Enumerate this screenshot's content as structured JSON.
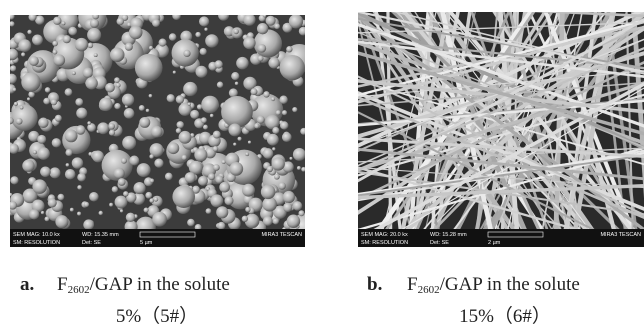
{
  "panels": [
    {
      "label": "a.",
      "caption_main": "F",
      "caption_sub": "2602",
      "caption_rest": "/GAP in the solute",
      "caption_line2": "5%（5#）",
      "info": {
        "mag": "SEM MAG: 10.0 kx",
        "wd": "WD: 15.35 mm",
        "mode": "SM: RESOLUTION",
        "det": "Det: SE",
        "scale": "5 µm",
        "brand": "MIRA3 TESCAN"
      }
    },
    {
      "label": "b.",
      "caption_main": "F",
      "caption_sub": "2602",
      "caption_rest": "/GAP in the solute",
      "caption_line2": "15%（6#）",
      "info": {
        "mag": "SEM MAG: 20.0 kx",
        "wd": "WD: 15.28 mm",
        "mode": "SM: RESOLUTION",
        "det": "Det: SE",
        "scale": "2 µm",
        "brand": "MIRA3 TESCAN"
      }
    }
  ]
}
